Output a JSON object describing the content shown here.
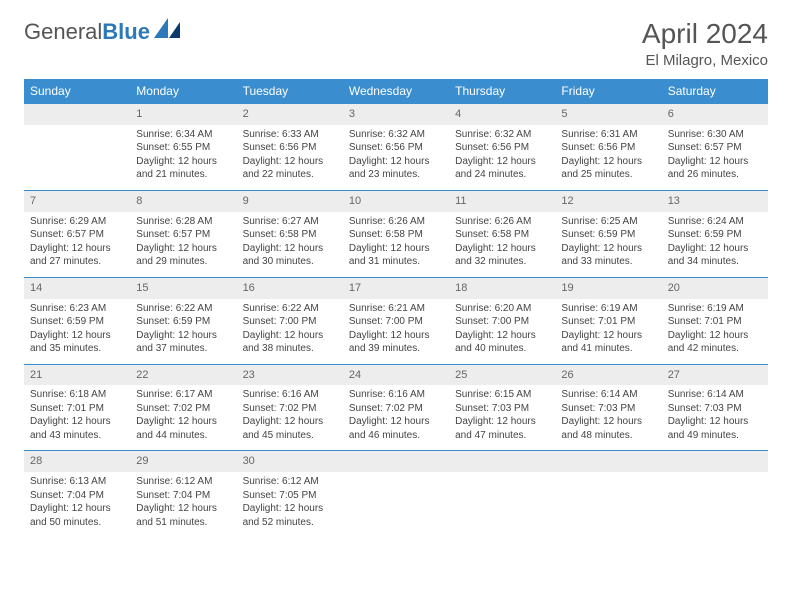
{
  "logo": {
    "text_gray": "General",
    "text_blue": "Blue"
  },
  "title": "April 2024",
  "location": "El Milagro, Mexico",
  "colors": {
    "header_bg": "#3a8dce",
    "header_text": "#ffffff",
    "daynum_bg": "#ededed",
    "row_border": "#3a8dce",
    "text": "#444444",
    "logo_blue": "#2d78b8",
    "logo_dark": "#0a3a6a"
  },
  "day_names": [
    "Sunday",
    "Monday",
    "Tuesday",
    "Wednesday",
    "Thursday",
    "Friday",
    "Saturday"
  ],
  "weeks": [
    {
      "days": [
        {
          "n": "",
          "sunrise": "",
          "sunset": "",
          "daylight1": "",
          "daylight2": ""
        },
        {
          "n": "1",
          "sunrise": "Sunrise: 6:34 AM",
          "sunset": "Sunset: 6:55 PM",
          "daylight1": "Daylight: 12 hours",
          "daylight2": "and 21 minutes."
        },
        {
          "n": "2",
          "sunrise": "Sunrise: 6:33 AM",
          "sunset": "Sunset: 6:56 PM",
          "daylight1": "Daylight: 12 hours",
          "daylight2": "and 22 minutes."
        },
        {
          "n": "3",
          "sunrise": "Sunrise: 6:32 AM",
          "sunset": "Sunset: 6:56 PM",
          "daylight1": "Daylight: 12 hours",
          "daylight2": "and 23 minutes."
        },
        {
          "n": "4",
          "sunrise": "Sunrise: 6:32 AM",
          "sunset": "Sunset: 6:56 PM",
          "daylight1": "Daylight: 12 hours",
          "daylight2": "and 24 minutes."
        },
        {
          "n": "5",
          "sunrise": "Sunrise: 6:31 AM",
          "sunset": "Sunset: 6:56 PM",
          "daylight1": "Daylight: 12 hours",
          "daylight2": "and 25 minutes."
        },
        {
          "n": "6",
          "sunrise": "Sunrise: 6:30 AM",
          "sunset": "Sunset: 6:57 PM",
          "daylight1": "Daylight: 12 hours",
          "daylight2": "and 26 minutes."
        }
      ]
    },
    {
      "days": [
        {
          "n": "7",
          "sunrise": "Sunrise: 6:29 AM",
          "sunset": "Sunset: 6:57 PM",
          "daylight1": "Daylight: 12 hours",
          "daylight2": "and 27 minutes."
        },
        {
          "n": "8",
          "sunrise": "Sunrise: 6:28 AM",
          "sunset": "Sunset: 6:57 PM",
          "daylight1": "Daylight: 12 hours",
          "daylight2": "and 29 minutes."
        },
        {
          "n": "9",
          "sunrise": "Sunrise: 6:27 AM",
          "sunset": "Sunset: 6:58 PM",
          "daylight1": "Daylight: 12 hours",
          "daylight2": "and 30 minutes."
        },
        {
          "n": "10",
          "sunrise": "Sunrise: 6:26 AM",
          "sunset": "Sunset: 6:58 PM",
          "daylight1": "Daylight: 12 hours",
          "daylight2": "and 31 minutes."
        },
        {
          "n": "11",
          "sunrise": "Sunrise: 6:26 AM",
          "sunset": "Sunset: 6:58 PM",
          "daylight1": "Daylight: 12 hours",
          "daylight2": "and 32 minutes."
        },
        {
          "n": "12",
          "sunrise": "Sunrise: 6:25 AM",
          "sunset": "Sunset: 6:59 PM",
          "daylight1": "Daylight: 12 hours",
          "daylight2": "and 33 minutes."
        },
        {
          "n": "13",
          "sunrise": "Sunrise: 6:24 AM",
          "sunset": "Sunset: 6:59 PM",
          "daylight1": "Daylight: 12 hours",
          "daylight2": "and 34 minutes."
        }
      ]
    },
    {
      "days": [
        {
          "n": "14",
          "sunrise": "Sunrise: 6:23 AM",
          "sunset": "Sunset: 6:59 PM",
          "daylight1": "Daylight: 12 hours",
          "daylight2": "and 35 minutes."
        },
        {
          "n": "15",
          "sunrise": "Sunrise: 6:22 AM",
          "sunset": "Sunset: 6:59 PM",
          "daylight1": "Daylight: 12 hours",
          "daylight2": "and 37 minutes."
        },
        {
          "n": "16",
          "sunrise": "Sunrise: 6:22 AM",
          "sunset": "Sunset: 7:00 PM",
          "daylight1": "Daylight: 12 hours",
          "daylight2": "and 38 minutes."
        },
        {
          "n": "17",
          "sunrise": "Sunrise: 6:21 AM",
          "sunset": "Sunset: 7:00 PM",
          "daylight1": "Daylight: 12 hours",
          "daylight2": "and 39 minutes."
        },
        {
          "n": "18",
          "sunrise": "Sunrise: 6:20 AM",
          "sunset": "Sunset: 7:00 PM",
          "daylight1": "Daylight: 12 hours",
          "daylight2": "and 40 minutes."
        },
        {
          "n": "19",
          "sunrise": "Sunrise: 6:19 AM",
          "sunset": "Sunset: 7:01 PM",
          "daylight1": "Daylight: 12 hours",
          "daylight2": "and 41 minutes."
        },
        {
          "n": "20",
          "sunrise": "Sunrise: 6:19 AM",
          "sunset": "Sunset: 7:01 PM",
          "daylight1": "Daylight: 12 hours",
          "daylight2": "and 42 minutes."
        }
      ]
    },
    {
      "days": [
        {
          "n": "21",
          "sunrise": "Sunrise: 6:18 AM",
          "sunset": "Sunset: 7:01 PM",
          "daylight1": "Daylight: 12 hours",
          "daylight2": "and 43 minutes."
        },
        {
          "n": "22",
          "sunrise": "Sunrise: 6:17 AM",
          "sunset": "Sunset: 7:02 PM",
          "daylight1": "Daylight: 12 hours",
          "daylight2": "and 44 minutes."
        },
        {
          "n": "23",
          "sunrise": "Sunrise: 6:16 AM",
          "sunset": "Sunset: 7:02 PM",
          "daylight1": "Daylight: 12 hours",
          "daylight2": "and 45 minutes."
        },
        {
          "n": "24",
          "sunrise": "Sunrise: 6:16 AM",
          "sunset": "Sunset: 7:02 PM",
          "daylight1": "Daylight: 12 hours",
          "daylight2": "and 46 minutes."
        },
        {
          "n": "25",
          "sunrise": "Sunrise: 6:15 AM",
          "sunset": "Sunset: 7:03 PM",
          "daylight1": "Daylight: 12 hours",
          "daylight2": "and 47 minutes."
        },
        {
          "n": "26",
          "sunrise": "Sunrise: 6:14 AM",
          "sunset": "Sunset: 7:03 PM",
          "daylight1": "Daylight: 12 hours",
          "daylight2": "and 48 minutes."
        },
        {
          "n": "27",
          "sunrise": "Sunrise: 6:14 AM",
          "sunset": "Sunset: 7:03 PM",
          "daylight1": "Daylight: 12 hours",
          "daylight2": "and 49 minutes."
        }
      ]
    },
    {
      "days": [
        {
          "n": "28",
          "sunrise": "Sunrise: 6:13 AM",
          "sunset": "Sunset: 7:04 PM",
          "daylight1": "Daylight: 12 hours",
          "daylight2": "and 50 minutes."
        },
        {
          "n": "29",
          "sunrise": "Sunrise: 6:12 AM",
          "sunset": "Sunset: 7:04 PM",
          "daylight1": "Daylight: 12 hours",
          "daylight2": "and 51 minutes."
        },
        {
          "n": "30",
          "sunrise": "Sunrise: 6:12 AM",
          "sunset": "Sunset: 7:05 PM",
          "daylight1": "Daylight: 12 hours",
          "daylight2": "and 52 minutes."
        },
        {
          "n": "",
          "sunrise": "",
          "sunset": "",
          "daylight1": "",
          "daylight2": ""
        },
        {
          "n": "",
          "sunrise": "",
          "sunset": "",
          "daylight1": "",
          "daylight2": ""
        },
        {
          "n": "",
          "sunrise": "",
          "sunset": "",
          "daylight1": "",
          "daylight2": ""
        },
        {
          "n": "",
          "sunrise": "",
          "sunset": "",
          "daylight1": "",
          "daylight2": ""
        }
      ]
    }
  ]
}
